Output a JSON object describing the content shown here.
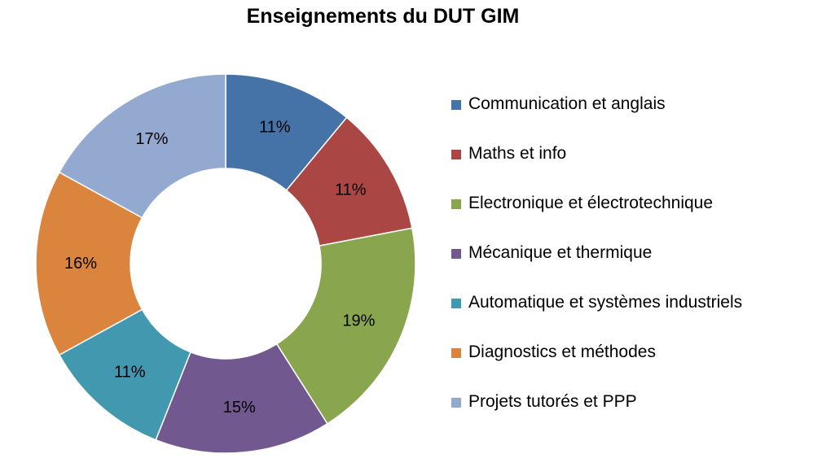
{
  "chart_data": {
    "type": "pie",
    "title": "Enseignements du DUT GIM",
    "series": [
      {
        "name": "Communication et anglais",
        "value": 11,
        "label": "11%",
        "color": "#4572A7"
      },
      {
        "name": "Maths et info",
        "value": 11,
        "label": "11%",
        "color": "#AA4643"
      },
      {
        "name": "Electronique et électrotechnique",
        "value": 19,
        "label": "19%",
        "color": "#89A54E"
      },
      {
        "name": "Mécanique et thermique",
        "value": 15,
        "label": "15%",
        "color": "#71588F"
      },
      {
        "name": "Automatique et systèmes industriels",
        "value": 11,
        "label": "11%",
        "color": "#4198AF"
      },
      {
        "name": "Diagnostics et méthodes",
        "value": 16,
        "label": "16%",
        "color": "#DB843D"
      },
      {
        "name": "Projets tutorés et PPP",
        "value": 17,
        "label": "17%",
        "color": "#93A9CF"
      }
    ],
    "legend_position": "right",
    "donut": true
  }
}
